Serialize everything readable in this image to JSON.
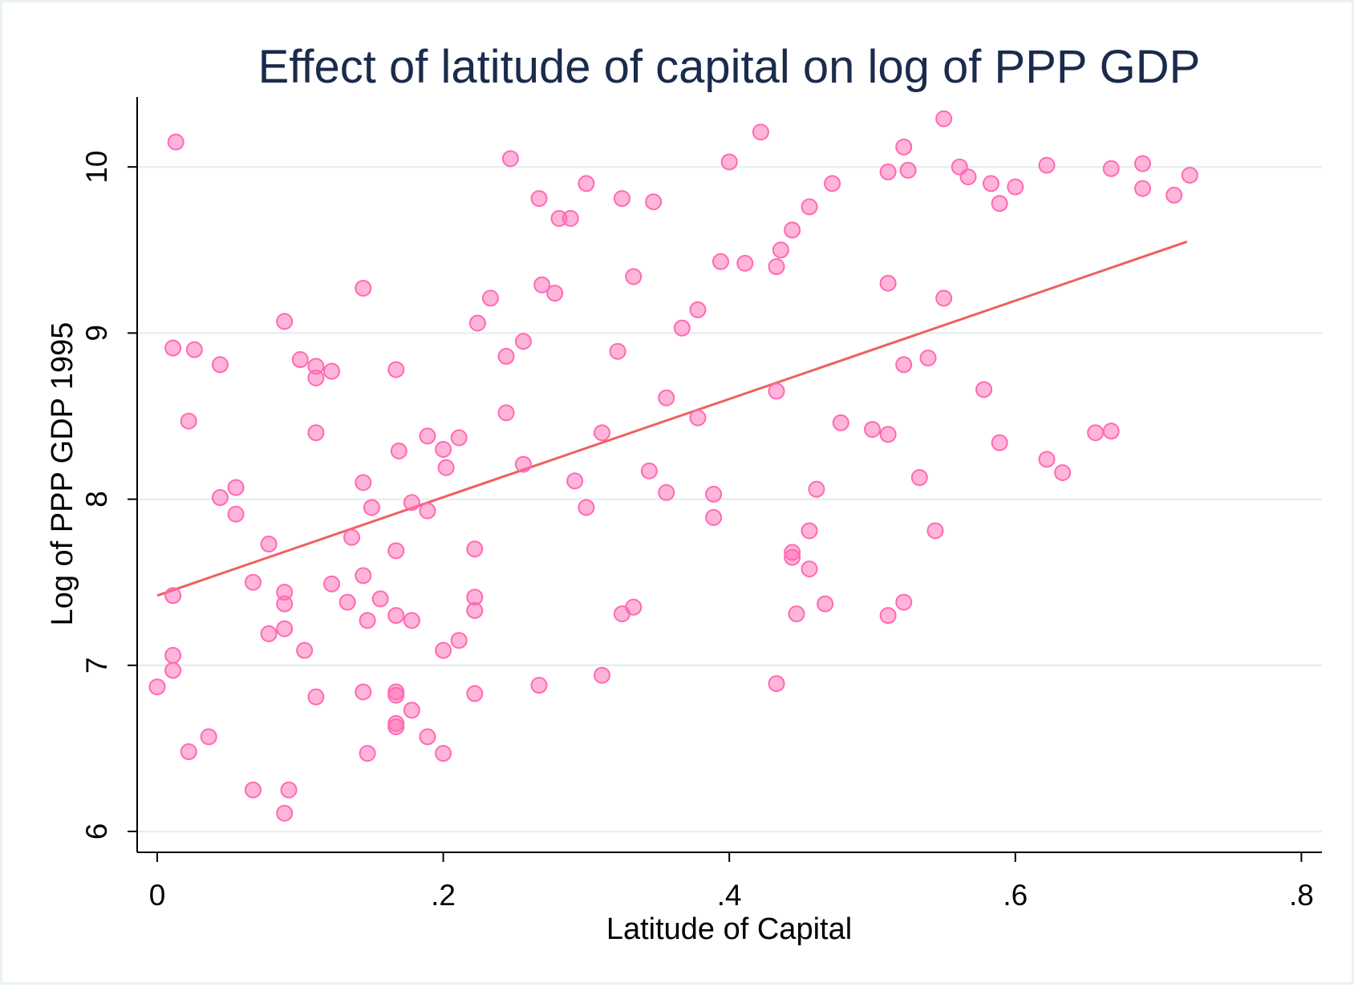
{
  "chart_data": {
    "type": "scatter",
    "title": "Effect of latitude of capital on log of PPP GDP",
    "xlabel": "Latitude of Capital",
    "ylabel": "Log of PPP GDP 1995",
    "xlim": [
      0,
      0.8
    ],
    "ylim": [
      6,
      10.4
    ],
    "x_ticks": [
      0,
      0.2,
      0.4,
      0.6,
      0.8
    ],
    "x_tick_labels": [
      "0",
      ".2",
      ".4",
      ".6",
      ".8"
    ],
    "y_ticks": [
      6,
      7,
      8,
      9,
      10
    ],
    "y_tick_labels": [
      "6",
      "7",
      "8",
      "9",
      "10"
    ],
    "grid": "horizontal",
    "marker_color": "#ff69b4",
    "line_color": "#ef6060",
    "fit_line": {
      "x": [
        0.0,
        0.72
      ],
      "y": [
        7.42,
        9.55
      ]
    },
    "points": [
      {
        "x": 0.0,
        "y": 6.87
      },
      {
        "x": 0.011,
        "y": 7.42
      },
      {
        "x": 0.011,
        "y": 7.06
      },
      {
        "x": 0.011,
        "y": 6.97
      },
      {
        "x": 0.011,
        "y": 8.91
      },
      {
        "x": 0.013,
        "y": 10.15
      },
      {
        "x": 0.022,
        "y": 8.47
      },
      {
        "x": 0.022,
        "y": 6.48
      },
      {
        "x": 0.026,
        "y": 8.9
      },
      {
        "x": 0.036,
        "y": 6.57
      },
      {
        "x": 0.044,
        "y": 8.81
      },
      {
        "x": 0.044,
        "y": 8.01
      },
      {
        "x": 0.055,
        "y": 8.07
      },
      {
        "x": 0.055,
        "y": 7.91
      },
      {
        "x": 0.067,
        "y": 7.5
      },
      {
        "x": 0.067,
        "y": 6.25
      },
      {
        "x": 0.078,
        "y": 7.73
      },
      {
        "x": 0.078,
        "y": 7.19
      },
      {
        "x": 0.089,
        "y": 9.07
      },
      {
        "x": 0.089,
        "y": 7.44
      },
      {
        "x": 0.089,
        "y": 7.37
      },
      {
        "x": 0.089,
        "y": 7.22
      },
      {
        "x": 0.089,
        "y": 6.11
      },
      {
        "x": 0.092,
        "y": 6.25
      },
      {
        "x": 0.1,
        "y": 8.84
      },
      {
        "x": 0.103,
        "y": 7.09
      },
      {
        "x": 0.111,
        "y": 8.8
      },
      {
        "x": 0.111,
        "y": 8.73
      },
      {
        "x": 0.111,
        "y": 8.4
      },
      {
        "x": 0.111,
        "y": 6.81
      },
      {
        "x": 0.122,
        "y": 8.77
      },
      {
        "x": 0.122,
        "y": 7.49
      },
      {
        "x": 0.133,
        "y": 7.38
      },
      {
        "x": 0.136,
        "y": 7.77
      },
      {
        "x": 0.144,
        "y": 9.27
      },
      {
        "x": 0.144,
        "y": 8.1
      },
      {
        "x": 0.144,
        "y": 7.54
      },
      {
        "x": 0.144,
        "y": 6.84
      },
      {
        "x": 0.147,
        "y": 7.27
      },
      {
        "x": 0.147,
        "y": 6.47
      },
      {
        "x": 0.15,
        "y": 7.95
      },
      {
        "x": 0.156,
        "y": 7.4
      },
      {
        "x": 0.167,
        "y": 8.78
      },
      {
        "x": 0.167,
        "y": 7.69
      },
      {
        "x": 0.167,
        "y": 7.3
      },
      {
        "x": 0.167,
        "y": 6.84
      },
      {
        "x": 0.167,
        "y": 6.82
      },
      {
        "x": 0.167,
        "y": 6.65
      },
      {
        "x": 0.167,
        "y": 6.63
      },
      {
        "x": 0.169,
        "y": 8.29
      },
      {
        "x": 0.178,
        "y": 7.98
      },
      {
        "x": 0.178,
        "y": 7.27
      },
      {
        "x": 0.178,
        "y": 6.73
      },
      {
        "x": 0.189,
        "y": 8.38
      },
      {
        "x": 0.189,
        "y": 7.93
      },
      {
        "x": 0.189,
        "y": 6.57
      },
      {
        "x": 0.2,
        "y": 8.3
      },
      {
        "x": 0.2,
        "y": 7.09
      },
      {
        "x": 0.2,
        "y": 6.47
      },
      {
        "x": 0.202,
        "y": 8.19
      },
      {
        "x": 0.211,
        "y": 8.37
      },
      {
        "x": 0.211,
        "y": 7.15
      },
      {
        "x": 0.222,
        "y": 7.7
      },
      {
        "x": 0.222,
        "y": 7.41
      },
      {
        "x": 0.222,
        "y": 7.33
      },
      {
        "x": 0.222,
        "y": 6.83
      },
      {
        "x": 0.224,
        "y": 9.06
      },
      {
        "x": 0.233,
        "y": 9.21
      },
      {
        "x": 0.244,
        "y": 8.86
      },
      {
        "x": 0.244,
        "y": 8.52
      },
      {
        "x": 0.247,
        "y": 10.05
      },
      {
        "x": 0.256,
        "y": 8.95
      },
      {
        "x": 0.256,
        "y": 8.21
      },
      {
        "x": 0.267,
        "y": 9.81
      },
      {
        "x": 0.267,
        "y": 6.88
      },
      {
        "x": 0.269,
        "y": 9.29
      },
      {
        "x": 0.278,
        "y": 9.24
      },
      {
        "x": 0.281,
        "y": 9.69
      },
      {
        "x": 0.289,
        "y": 9.69
      },
      {
        "x": 0.292,
        "y": 8.11
      },
      {
        "x": 0.3,
        "y": 9.9
      },
      {
        "x": 0.3,
        "y": 7.95
      },
      {
        "x": 0.311,
        "y": 8.4
      },
      {
        "x": 0.311,
        "y": 6.94
      },
      {
        "x": 0.322,
        "y": 8.89
      },
      {
        "x": 0.325,
        "y": 9.81
      },
      {
        "x": 0.325,
        "y": 7.31
      },
      {
        "x": 0.333,
        "y": 9.34
      },
      {
        "x": 0.333,
        "y": 7.35
      },
      {
        "x": 0.344,
        "y": 8.17
      },
      {
        "x": 0.347,
        "y": 9.79
      },
      {
        "x": 0.356,
        "y": 8.61
      },
      {
        "x": 0.356,
        "y": 8.04
      },
      {
        "x": 0.367,
        "y": 9.03
      },
      {
        "x": 0.378,
        "y": 9.14
      },
      {
        "x": 0.378,
        "y": 8.49
      },
      {
        "x": 0.389,
        "y": 8.03
      },
      {
        "x": 0.389,
        "y": 7.89
      },
      {
        "x": 0.394,
        "y": 9.43
      },
      {
        "x": 0.4,
        "y": 10.03
      },
      {
        "x": 0.411,
        "y": 9.42
      },
      {
        "x": 0.422,
        "y": 10.21
      },
      {
        "x": 0.433,
        "y": 9.4
      },
      {
        "x": 0.433,
        "y": 8.65
      },
      {
        "x": 0.433,
        "y": 6.89
      },
      {
        "x": 0.436,
        "y": 9.5
      },
      {
        "x": 0.444,
        "y": 9.62
      },
      {
        "x": 0.444,
        "y": 7.68
      },
      {
        "x": 0.444,
        "y": 7.65
      },
      {
        "x": 0.447,
        "y": 7.31
      },
      {
        "x": 0.456,
        "y": 9.76
      },
      {
        "x": 0.456,
        "y": 7.81
      },
      {
        "x": 0.456,
        "y": 7.58
      },
      {
        "x": 0.461,
        "y": 8.06
      },
      {
        "x": 0.467,
        "y": 7.37
      },
      {
        "x": 0.472,
        "y": 9.9
      },
      {
        "x": 0.478,
        "y": 8.46
      },
      {
        "x": 0.5,
        "y": 8.42
      },
      {
        "x": 0.511,
        "y": 9.97
      },
      {
        "x": 0.511,
        "y": 9.3
      },
      {
        "x": 0.511,
        "y": 8.39
      },
      {
        "x": 0.511,
        "y": 7.3
      },
      {
        "x": 0.522,
        "y": 10.12
      },
      {
        "x": 0.522,
        "y": 8.81
      },
      {
        "x": 0.522,
        "y": 7.38
      },
      {
        "x": 0.525,
        "y": 9.98
      },
      {
        "x": 0.533,
        "y": 8.13
      },
      {
        "x": 0.539,
        "y": 8.85
      },
      {
        "x": 0.544,
        "y": 7.81
      },
      {
        "x": 0.55,
        "y": 10.29
      },
      {
        "x": 0.55,
        "y": 9.21
      },
      {
        "x": 0.561,
        "y": 10.0
      },
      {
        "x": 0.567,
        "y": 9.94
      },
      {
        "x": 0.578,
        "y": 8.66
      },
      {
        "x": 0.583,
        "y": 9.9
      },
      {
        "x": 0.589,
        "y": 9.78
      },
      {
        "x": 0.589,
        "y": 8.34
      },
      {
        "x": 0.6,
        "y": 9.88
      },
      {
        "x": 0.622,
        "y": 10.01
      },
      {
        "x": 0.622,
        "y": 8.24
      },
      {
        "x": 0.633,
        "y": 8.16
      },
      {
        "x": 0.656,
        "y": 8.4
      },
      {
        "x": 0.667,
        "y": 9.99
      },
      {
        "x": 0.667,
        "y": 8.41
      },
      {
        "x": 0.689,
        "y": 10.02
      },
      {
        "x": 0.689,
        "y": 9.87
      },
      {
        "x": 0.711,
        "y": 9.83
      },
      {
        "x": 0.722,
        "y": 9.95
      }
    ]
  }
}
